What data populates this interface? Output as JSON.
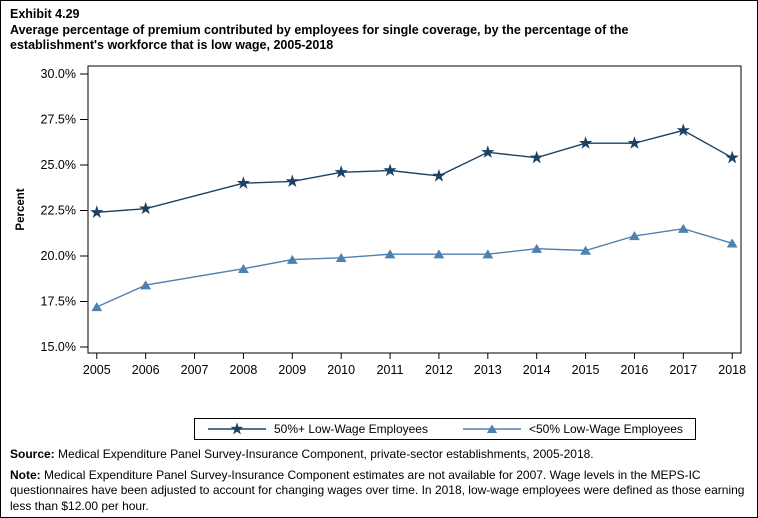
{
  "header": {
    "exhibit": "Exhibit 4.29",
    "title": "Average percentage of premium contributed by employees for single coverage, by the percentage of the establishment's workforce that is low wage, 2005-2018"
  },
  "chart_data": {
    "type": "line",
    "x": [
      2005,
      2006,
      2007,
      2008,
      2009,
      2010,
      2011,
      2012,
      2013,
      2014,
      2015,
      2016,
      2017,
      2018
    ],
    "xlim": [
      2004.82,
      2018.18
    ],
    "ylabel": "Percent",
    "ylim": [
      14.67,
      30.44
    ],
    "yticks": [
      15,
      17.5,
      20,
      22.5,
      25,
      27.5,
      30
    ],
    "ytick_labels": [
      "15.0%",
      "17.5%",
      "20.0%",
      "22.5%",
      "25.0%",
      "27.5%",
      "30.0%"
    ],
    "grid": false,
    "legend_position": "bottom",
    "series": [
      {
        "name": "50%+ Low-Wage Employees",
        "marker": "star",
        "color": "#1B4265",
        "values": [
          22.4,
          22.6,
          null,
          24.0,
          24.1,
          24.6,
          24.7,
          24.4,
          25.7,
          25.4,
          26.2,
          26.2,
          26.9,
          25.4
        ]
      },
      {
        "name": "<50% Low-Wage Employees",
        "marker": "triangle",
        "color": "#4E80B0",
        "values": [
          17.2,
          18.4,
          null,
          19.3,
          19.8,
          19.9,
          20.1,
          20.1,
          20.1,
          20.4,
          20.3,
          21.1,
          21.5,
          20.7
        ]
      }
    ],
    "data_note": "2007 values not available"
  },
  "footer": {
    "source_label": "Source:",
    "source_text": " Medical Expenditure Panel Survey-Insurance Component, private-sector establishments, 2005-2018.",
    "note_label": "Note:",
    "note_text": " Medical Expenditure Panel Survey-Insurance Component estimates are not available for 2007. Wage levels in the MEPS-IC questionnaires have been adjusted to account for changing wages over time.  In 2018, low-wage employees were defined as those earning less than $12.00 per hour."
  }
}
